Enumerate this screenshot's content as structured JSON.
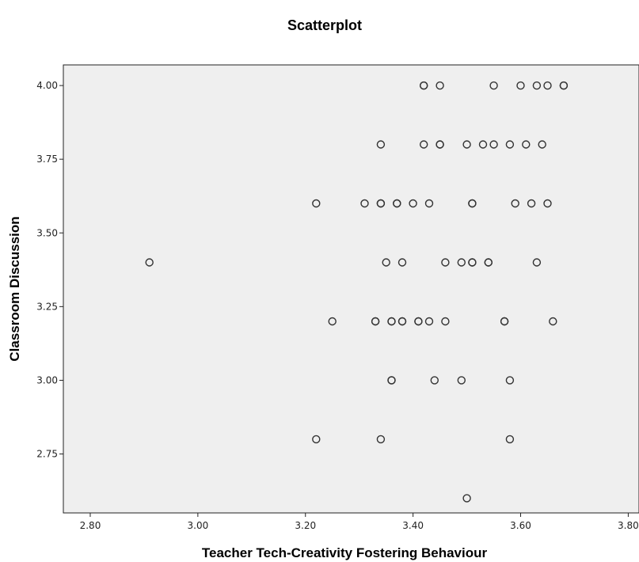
{
  "chart_data": {
    "type": "scatter",
    "title": "Scatterplot",
    "xlabel": "Teacher Tech-Creativity Fostering Behaviour",
    "ylabel": "Classroom Discussion",
    "xlim": [
      2.75,
      3.82
    ],
    "ylim": [
      2.55,
      4.07
    ],
    "xticks": [
      "2.80",
      "3.00",
      "3.20",
      "3.40",
      "3.60",
      "3.80"
    ],
    "yticks": [
      "2.75",
      "3.00",
      "3.25",
      "3.50",
      "3.75",
      "4.00"
    ],
    "grid": false,
    "colors": {
      "plot_bg": "#efefef",
      "marker_stroke": "#333333",
      "axis": "#222222"
    },
    "points": [
      [
        3.42,
        4.0
      ],
      [
        3.42,
        4.0
      ],
      [
        3.45,
        4.0
      ],
      [
        3.55,
        4.0
      ],
      [
        3.6,
        4.0
      ],
      [
        3.63,
        4.0
      ],
      [
        3.65,
        4.0
      ],
      [
        3.68,
        4.0
      ],
      [
        3.68,
        4.0
      ],
      [
        3.34,
        3.8
      ],
      [
        3.42,
        3.8
      ],
      [
        3.45,
        3.8
      ],
      [
        3.45,
        3.8
      ],
      [
        3.5,
        3.8
      ],
      [
        3.53,
        3.8
      ],
      [
        3.55,
        3.8
      ],
      [
        3.58,
        3.8
      ],
      [
        3.61,
        3.8
      ],
      [
        3.64,
        3.8
      ],
      [
        3.22,
        3.6
      ],
      [
        3.31,
        3.6
      ],
      [
        3.34,
        3.6
      ],
      [
        3.34,
        3.6
      ],
      [
        3.37,
        3.6
      ],
      [
        3.37,
        3.6
      ],
      [
        3.4,
        3.6
      ],
      [
        3.43,
        3.6
      ],
      [
        3.51,
        3.6
      ],
      [
        3.51,
        3.6
      ],
      [
        3.59,
        3.6
      ],
      [
        3.62,
        3.6
      ],
      [
        3.65,
        3.6
      ],
      [
        2.91,
        3.4
      ],
      [
        3.35,
        3.4
      ],
      [
        3.38,
        3.4
      ],
      [
        3.46,
        3.4
      ],
      [
        3.49,
        3.4
      ],
      [
        3.51,
        3.4
      ],
      [
        3.51,
        3.4
      ],
      [
        3.54,
        3.4
      ],
      [
        3.54,
        3.4
      ],
      [
        3.63,
        3.4
      ],
      [
        3.25,
        3.2
      ],
      [
        3.33,
        3.2
      ],
      [
        3.33,
        3.2
      ],
      [
        3.36,
        3.2
      ],
      [
        3.36,
        3.2
      ],
      [
        3.38,
        3.2
      ],
      [
        3.38,
        3.2
      ],
      [
        3.41,
        3.2
      ],
      [
        3.41,
        3.2
      ],
      [
        3.43,
        3.2
      ],
      [
        3.46,
        3.2
      ],
      [
        3.57,
        3.2
      ],
      [
        3.57,
        3.2
      ],
      [
        3.66,
        3.2
      ],
      [
        3.36,
        3.0
      ],
      [
        3.36,
        3.0
      ],
      [
        3.44,
        3.0
      ],
      [
        3.49,
        3.0
      ],
      [
        3.58,
        3.0
      ],
      [
        3.22,
        2.8
      ],
      [
        3.34,
        2.8
      ],
      [
        3.58,
        2.8
      ],
      [
        3.5,
        2.6
      ]
    ]
  }
}
